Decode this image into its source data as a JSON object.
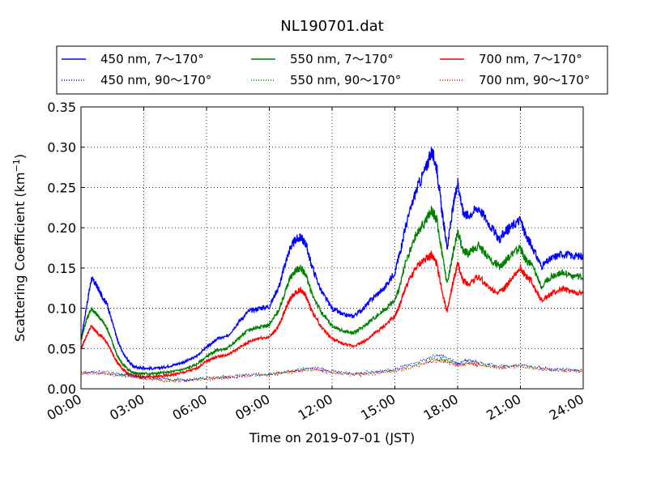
{
  "chart_data": {
    "type": "line",
    "title": "NL190701.dat",
    "xlabel": "Time on 2019-07-01 (JST)",
    "ylabel_main": "Scattering Coefficient (km",
    "ylabel_sup": "−1",
    "ylabel_close": ")",
    "xlim": [
      0,
      24
    ],
    "ylim": [
      0,
      0.35
    ],
    "x_ticks": [
      0,
      3,
      6,
      9,
      12,
      15,
      18,
      21,
      24
    ],
    "x_tick_labels": [
      "00:00",
      "03:00",
      "06:00",
      "09:00",
      "12:00",
      "15:00",
      "18:00",
      "21:00",
      "24:00"
    ],
    "y_ticks": [
      0,
      0.05,
      0.1,
      0.15,
      0.2,
      0.25,
      0.3,
      0.35
    ],
    "y_tick_labels": [
      "0.00",
      "0.05",
      "0.10",
      "0.15",
      "0.20",
      "0.25",
      "0.30",
      "0.35"
    ],
    "grid": true,
    "legend_position": "top, above plot, 3 columns",
    "series": [
      {
        "name": "450 nm, 7～170°",
        "color": "#0000ff",
        "style": "solid",
        "x": [
          0,
          0.25,
          0.5,
          0.75,
          1,
          1.25,
          1.5,
          1.75,
          2,
          2.25,
          2.5,
          2.75,
          3,
          3.5,
          4,
          4.5,
          5,
          5.5,
          6,
          6.25,
          6.5,
          7,
          7.5,
          8,
          8.5,
          9,
          9.5,
          9.75,
          10,
          10.25,
          10.5,
          10.75,
          11,
          11.5,
          12,
          12.5,
          13,
          13.5,
          14,
          14.5,
          15,
          15.25,
          15.5,
          16,
          16.5,
          16.75,
          17,
          17.25,
          17.5,
          17.75,
          18,
          18.25,
          18.5,
          19,
          19.5,
          20,
          20.25,
          20.5,
          21,
          21.25,
          21.5,
          22,
          22.5,
          23,
          23.5,
          24
        ],
        "y": [
          0.06,
          0.1,
          0.137,
          0.128,
          0.115,
          0.105,
          0.082,
          0.06,
          0.045,
          0.035,
          0.028,
          0.026,
          0.026,
          0.025,
          0.027,
          0.03,
          0.034,
          0.04,
          0.052,
          0.056,
          0.062,
          0.065,
          0.082,
          0.096,
          0.1,
          0.102,
          0.13,
          0.155,
          0.175,
          0.185,
          0.188,
          0.18,
          0.155,
          0.12,
          0.1,
          0.092,
          0.09,
          0.1,
          0.114,
          0.125,
          0.145,
          0.17,
          0.2,
          0.245,
          0.275,
          0.295,
          0.275,
          0.22,
          0.175,
          0.22,
          0.258,
          0.22,
          0.215,
          0.225,
          0.205,
          0.185,
          0.195,
          0.2,
          0.21,
          0.19,
          0.18,
          0.152,
          0.162,
          0.168,
          0.165,
          0.165
        ]
      },
      {
        "name": "550 nm, 7～170°",
        "color": "#008000",
        "style": "solid",
        "x": [
          0,
          0.25,
          0.5,
          0.75,
          1,
          1.25,
          1.5,
          1.75,
          2,
          2.25,
          2.5,
          2.75,
          3,
          3.5,
          4,
          4.5,
          5,
          5.5,
          6,
          6.25,
          6.5,
          7,
          7.5,
          8,
          8.5,
          9,
          9.5,
          9.75,
          10,
          10.25,
          10.5,
          10.75,
          11,
          11.5,
          12,
          12.5,
          13,
          13.5,
          14,
          14.5,
          15,
          15.25,
          15.5,
          16,
          16.5,
          16.75,
          17,
          17.25,
          17.5,
          17.75,
          18,
          18.25,
          18.5,
          19,
          19.5,
          20,
          20.25,
          20.5,
          21,
          21.25,
          21.5,
          22,
          22.5,
          23,
          23.5,
          24
        ],
        "y": [
          0.06,
          0.085,
          0.1,
          0.092,
          0.085,
          0.075,
          0.058,
          0.04,
          0.03,
          0.024,
          0.02,
          0.019,
          0.019,
          0.019,
          0.02,
          0.022,
          0.025,
          0.03,
          0.04,
          0.044,
          0.048,
          0.05,
          0.062,
          0.073,
          0.077,
          0.079,
          0.1,
          0.12,
          0.138,
          0.147,
          0.15,
          0.142,
          0.12,
          0.094,
          0.078,
          0.072,
          0.069,
          0.077,
          0.088,
          0.098,
          0.11,
          0.128,
          0.155,
          0.19,
          0.21,
          0.222,
          0.21,
          0.17,
          0.13,
          0.165,
          0.196,
          0.172,
          0.168,
          0.178,
          0.162,
          0.152,
          0.158,
          0.165,
          0.175,
          0.16,
          0.155,
          0.128,
          0.14,
          0.145,
          0.14,
          0.138
        ]
      },
      {
        "name": "700 nm, 7～170°",
        "color": "#ff0000",
        "style": "solid",
        "x": [
          0,
          0.25,
          0.5,
          0.75,
          1,
          1.25,
          1.5,
          1.75,
          2,
          2.25,
          2.5,
          2.75,
          3,
          3.5,
          4,
          4.5,
          5,
          5.5,
          6,
          6.25,
          6.5,
          7,
          7.5,
          8,
          8.5,
          9,
          9.5,
          9.75,
          10,
          10.25,
          10.5,
          10.75,
          11,
          11.5,
          12,
          12.5,
          13,
          13.5,
          14,
          14.5,
          15,
          15.25,
          15.5,
          16,
          16.5,
          16.75,
          17,
          17.25,
          17.5,
          17.75,
          18,
          18.25,
          18.5,
          19,
          19.5,
          20,
          20.25,
          20.5,
          21,
          21.25,
          21.5,
          22,
          22.5,
          23,
          23.5,
          24
        ],
        "y": [
          0.05,
          0.065,
          0.078,
          0.07,
          0.065,
          0.057,
          0.044,
          0.032,
          0.024,
          0.019,
          0.016,
          0.015,
          0.015,
          0.015,
          0.016,
          0.018,
          0.021,
          0.025,
          0.034,
          0.037,
          0.04,
          0.042,
          0.05,
          0.058,
          0.063,
          0.064,
          0.08,
          0.098,
          0.112,
          0.12,
          0.123,
          0.115,
          0.098,
          0.076,
          0.062,
          0.056,
          0.053,
          0.058,
          0.068,
          0.078,
          0.09,
          0.105,
          0.125,
          0.15,
          0.163,
          0.166,
          0.155,
          0.122,
          0.095,
          0.128,
          0.155,
          0.135,
          0.13,
          0.14,
          0.125,
          0.12,
          0.125,
          0.135,
          0.15,
          0.14,
          0.135,
          0.11,
          0.118,
          0.124,
          0.12,
          0.118
        ]
      },
      {
        "name": "450 nm, 90～170°",
        "color": "#0000ff",
        "style": "dotted",
        "x": [
          0,
          1,
          2,
          3,
          4,
          5,
          6,
          7,
          8,
          9,
          10,
          11,
          12,
          13,
          14,
          15,
          16,
          17,
          17.5,
          18,
          18.5,
          19,
          20,
          21,
          22,
          23,
          24
        ],
        "y": [
          0.02,
          0.021,
          0.018,
          0.015,
          0.012,
          0.011,
          0.013,
          0.015,
          0.017,
          0.018,
          0.022,
          0.026,
          0.022,
          0.019,
          0.021,
          0.024,
          0.032,
          0.042,
          0.038,
          0.032,
          0.035,
          0.033,
          0.028,
          0.03,
          0.026,
          0.024,
          0.024
        ]
      },
      {
        "name": "550 nm, 90～170°",
        "color": "#008000",
        "style": "dotted",
        "x": [
          0,
          1,
          2,
          3,
          4,
          5,
          6,
          7,
          8,
          9,
          10,
          11,
          12,
          13,
          14,
          15,
          16,
          17,
          17.5,
          18,
          18.5,
          19,
          20,
          21,
          22,
          23,
          24
        ],
        "y": [
          0.02,
          0.02,
          0.017,
          0.014,
          0.011,
          0.011,
          0.013,
          0.015,
          0.017,
          0.018,
          0.022,
          0.025,
          0.021,
          0.018,
          0.02,
          0.023,
          0.03,
          0.038,
          0.035,
          0.03,
          0.033,
          0.031,
          0.027,
          0.029,
          0.025,
          0.023,
          0.023
        ]
      },
      {
        "name": "700 nm, 90～170°",
        "color": "#ff0000",
        "style": "dotted",
        "x": [
          0,
          1,
          2,
          3,
          4,
          5,
          6,
          7,
          8,
          9,
          10,
          11,
          12,
          13,
          14,
          15,
          16,
          17,
          17.5,
          18,
          18.5,
          19,
          20,
          21,
          22,
          23,
          24
        ],
        "y": [
          0.019,
          0.019,
          0.016,
          0.013,
          0.01,
          0.01,
          0.012,
          0.014,
          0.016,
          0.017,
          0.021,
          0.024,
          0.02,
          0.017,
          0.019,
          0.022,
          0.028,
          0.035,
          0.033,
          0.029,
          0.031,
          0.03,
          0.026,
          0.028,
          0.024,
          0.022,
          0.022
        ]
      }
    ],
    "legend_order": [
      0,
      1,
      2,
      3,
      4,
      5
    ]
  }
}
